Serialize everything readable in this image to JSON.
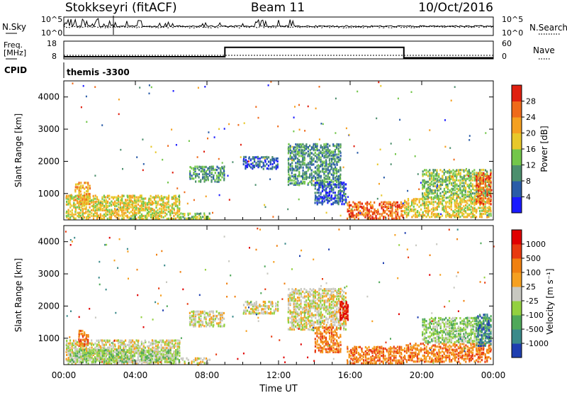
{
  "header": {
    "station": "Stokkseyri (fitACF)",
    "beam": "Beam 11",
    "date": "10/Oct/2016"
  },
  "chart_data": [
    {
      "type": "line",
      "panel": "noise",
      "ylabel_left": "N.Sky",
      "ylabel_right": "N.Search",
      "left_ticks": [
        "10^5",
        "10^0"
      ],
      "right_ticks": [
        "10^5",
        "10^0"
      ]
    },
    {
      "type": "line",
      "panel": "frequency",
      "ylabel_left": [
        "Freq.",
        "[MHz]"
      ],
      "ylabel_right": "Nave",
      "left_ticks": [
        "18",
        "8"
      ],
      "right_ticks": [
        "60",
        "0"
      ],
      "frequency_steps": [
        {
          "x": 0,
          "y": 9.2
        },
        {
          "x": 9,
          "y": 9.2
        },
        {
          "x": 9,
          "y": 14.5
        },
        {
          "x": 19,
          "y": 14.5
        },
        {
          "x": 19,
          "y": 8.6
        },
        {
          "x": 24,
          "y": 8.6
        }
      ],
      "nave_level": 12
    },
    {
      "panel": "cpid",
      "label": "CPID",
      "program": "themis -3300"
    },
    {
      "type": "heatmap",
      "panel": "power",
      "ylabel": "Slant Range [km]",
      "yticks": [
        "1000",
        "2000",
        "3000",
        "4000"
      ],
      "ylim": [
        180,
        4500
      ],
      "colorbar_label": "Power [dB]",
      "colorbar_ticks": [
        "4",
        "8",
        "12",
        "16",
        "20",
        "24",
        "28"
      ],
      "colors": [
        "#1a1aff",
        "#2a5ca8",
        "#4c8f6d",
        "#73c64a",
        "#e8c82a",
        "#f5a020",
        "#ef6a1a",
        "#e02010"
      ],
      "regions": [
        {
          "t": [
            0,
            6.5
          ],
          "r": [
            200,
            1000
          ],
          "level": 4
        },
        {
          "t": [
            0.6,
            1.5
          ],
          "r": [
            700,
            1400
          ],
          "level": 5
        },
        {
          "t": [
            6.5,
            8.2
          ],
          "r": [
            250,
            450
          ],
          "level": 3
        },
        {
          "t": [
            7,
            9
          ],
          "r": [
            1400,
            1900
          ],
          "level": 2
        },
        {
          "t": [
            10,
            12
          ],
          "r": [
            1800,
            2200
          ],
          "level": 1
        },
        {
          "t": [
            12.5,
            15.5
          ],
          "r": [
            1300,
            2600
          ],
          "level": 2
        },
        {
          "t": [
            14,
            15.8
          ],
          "r": [
            700,
            1400
          ],
          "level": 1
        },
        {
          "t": [
            15.8,
            19
          ],
          "r": [
            250,
            800
          ],
          "level": 6
        },
        {
          "t": [
            19,
            24
          ],
          "r": [
            300,
            900
          ],
          "level": 4
        },
        {
          "t": [
            20,
            24
          ],
          "r": [
            900,
            1800
          ],
          "level": 3
        },
        {
          "t": [
            23,
            24
          ],
          "r": [
            700,
            1700
          ],
          "level": 6
        }
      ]
    },
    {
      "type": "heatmap",
      "panel": "velocity",
      "xlabel": "Time UT",
      "ylabel": "Slant Range [km]",
      "yticks": [
        "1000",
        "2000",
        "3000",
        "4000"
      ],
      "ylim": [
        180,
        4500
      ],
      "xticks": [
        "00:00",
        "04:00",
        "08:00",
        "12:00",
        "16:00",
        "20:00",
        "00:00"
      ],
      "xlim": [
        0,
        24
      ],
      "colorbar_label": "Velocity [m s⁻¹]",
      "colorbar_ticks": [
        "1000",
        "500",
        "100",
        "25",
        "-25",
        "-100",
        "-500",
        "-1000"
      ],
      "colors": [
        "#1f3fb0",
        "#3a8a8a",
        "#4fa85a",
        "#93d040",
        "#c8c8c0",
        "#f5a020",
        "#f08010",
        "#e83a10",
        "#e00000"
      ],
      "regions": [
        {
          "t": [
            0,
            6.5
          ],
          "r": [
            200,
            1000
          ],
          "level": 4
        },
        {
          "t": [
            0.3,
            6.5
          ],
          "r": [
            300,
            700
          ],
          "level": 3
        },
        {
          "t": [
            0.8,
            1.4
          ],
          "r": [
            800,
            1300
          ],
          "level": 6
        },
        {
          "t": [
            6.5,
            8.2
          ],
          "r": [
            250,
            450
          ],
          "level": 4
        },
        {
          "t": [
            7,
            9
          ],
          "r": [
            1400,
            1900
          ],
          "level": 4
        },
        {
          "t": [
            10,
            12
          ],
          "r": [
            1800,
            2200
          ],
          "level": 4
        },
        {
          "t": [
            12.5,
            15.8
          ],
          "r": [
            1300,
            2600
          ],
          "level": 4
        },
        {
          "t": [
            15.4,
            15.9
          ],
          "r": [
            1600,
            2200
          ],
          "level": 8
        },
        {
          "t": [
            14,
            15.5
          ],
          "r": [
            600,
            1400
          ],
          "level": 6
        },
        {
          "t": [
            15.8,
            19
          ],
          "r": [
            250,
            800
          ],
          "level": 6
        },
        {
          "t": [
            19,
            24
          ],
          "r": [
            300,
            900
          ],
          "level": 6
        },
        {
          "t": [
            20,
            24
          ],
          "r": [
            900,
            1700
          ],
          "level": 3
        },
        {
          "t": [
            23,
            24
          ],
          "r": [
            800,
            1800
          ],
          "level": 1
        }
      ]
    }
  ]
}
